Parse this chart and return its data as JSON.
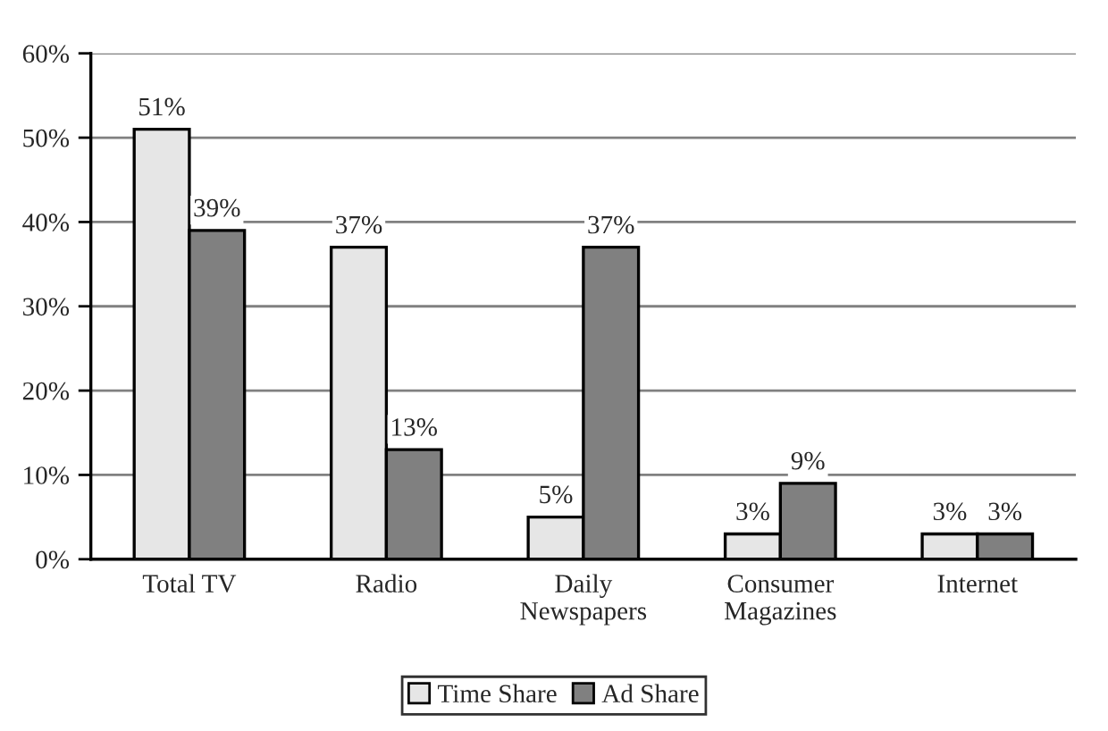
{
  "chart_data": {
    "type": "bar",
    "categories": [
      "Total TV",
      "Radio",
      "Daily\nNewspapers",
      "Consumer\nMagazines",
      "Internet"
    ],
    "series": [
      {
        "name": "Time Share",
        "color": "#e6e6e6",
        "values": [
          51,
          37,
          5,
          3,
          3
        ],
        "value_labels": [
          "51%",
          "37%",
          "5%",
          "3%",
          "3%"
        ]
      },
      {
        "name": "Ad Share",
        "color": "#808080",
        "values": [
          39,
          13,
          37,
          9,
          3
        ],
        "value_labels": [
          "39%",
          "13%",
          "37%",
          "9%",
          "3%"
        ]
      }
    ],
    "ylim": [
      0,
      60
    ],
    "yticks": [
      {
        "value": 0,
        "label": "0%"
      },
      {
        "value": 10,
        "label": "10%"
      },
      {
        "value": 20,
        "label": "20%"
      },
      {
        "value": 30,
        "label": "30%"
      },
      {
        "value": 40,
        "label": "40%"
      },
      {
        "value": 50,
        "label": "50%"
      },
      {
        "value": 60,
        "label": "60%"
      }
    ],
    "grid": "y",
    "legend": "bottom"
  }
}
